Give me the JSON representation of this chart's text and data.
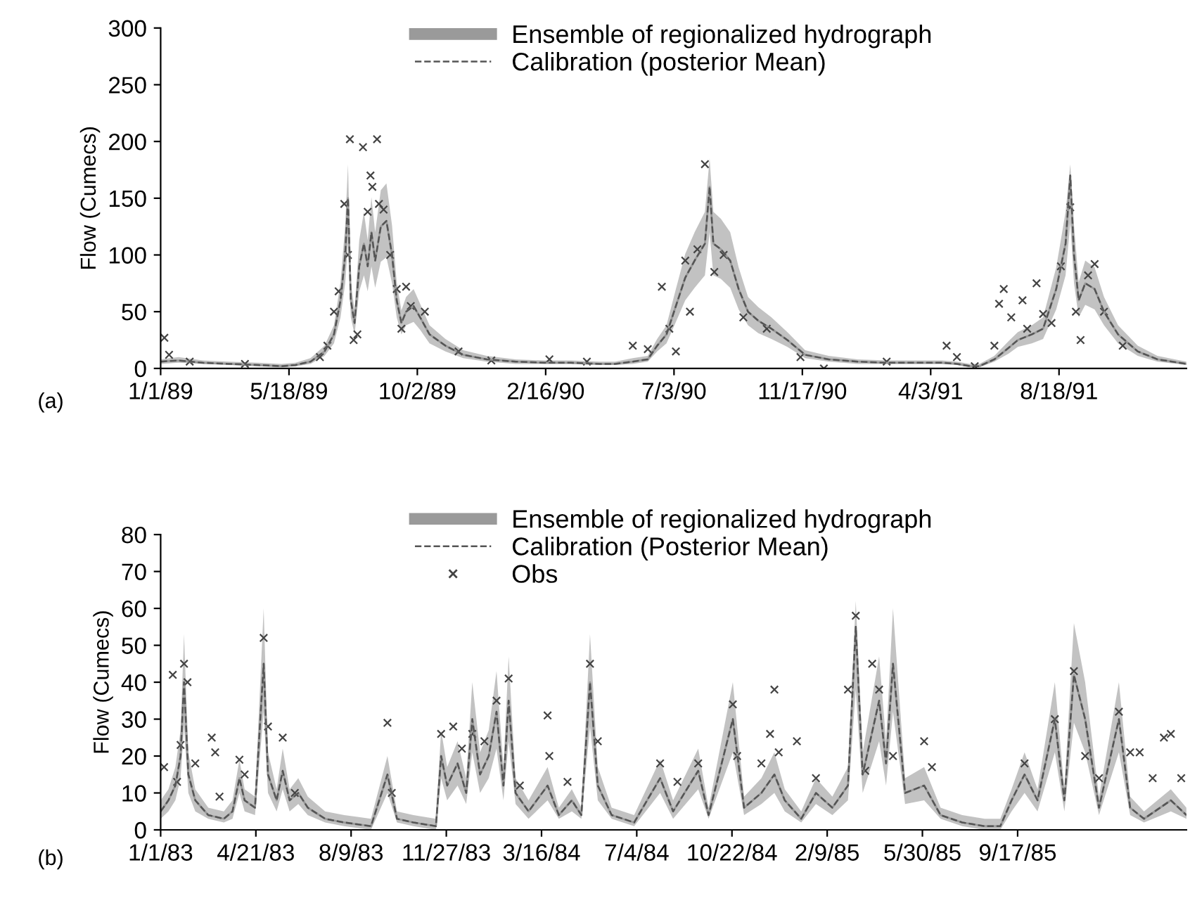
{
  "chart_data": [
    {
      "type": "line",
      "ylabel": "Flow (Cumecs)",
      "annotations": [
        "(a)"
      ],
      "legend": "top",
      "grid": false,
      "xlim": [
        "1989-01-01",
        "1992-01-01"
      ],
      "ylim": [
        0,
        300
      ],
      "yticks": [
        0,
        50,
        100,
        150,
        200,
        250,
        300
      ],
      "xticks": [
        {
          "value": "1989-01-01",
          "label": "1/1/89"
        },
        {
          "value": "1989-05-18",
          "label": "5/18/89"
        },
        {
          "value": "1989-10-02",
          "label": "10/2/89"
        },
        {
          "value": "1990-02-16",
          "label": "2/16/90"
        },
        {
          "value": "1990-07-03",
          "label": "7/3/90"
        },
        {
          "value": "1990-11-17",
          "label": "11/17/90"
        },
        {
          "value": "1991-04-03",
          "label": "4/3/91"
        },
        {
          "value": "1991-08-18",
          "label": "8/18/91"
        }
      ],
      "series": [
        {
          "name": "Ensemble of regionalized hydrograph",
          "type": "line",
          "color": "#9a9a9a",
          "line_style": "solid",
          "x": [
            "1989-01-01",
            "1989-01-20",
            "1989-02-15",
            "1989-03-15",
            "1989-04-15",
            "1989-05-10",
            "1989-05-25",
            "1989-06-10",
            "1989-06-25",
            "1989-07-05",
            "1989-07-12",
            "1989-07-17",
            "1989-07-20",
            "1989-07-23",
            "1989-07-27",
            "1989-08-01",
            "1989-08-06",
            "1989-08-10",
            "1989-08-14",
            "1989-08-18",
            "1989-08-24",
            "1989-08-30",
            "1989-09-05",
            "1989-09-10",
            "1989-09-15",
            "1989-09-20",
            "1989-09-28",
            "1989-10-05",
            "1989-10-15",
            "1989-11-01",
            "1989-11-20",
            "1989-12-15",
            "1990-01-15",
            "1990-02-15",
            "1990-03-15",
            "1990-04-15",
            "1990-05-01",
            "1990-05-20",
            "1990-06-05",
            "1990-06-15",
            "1990-06-25",
            "1990-07-05",
            "1990-07-15",
            "1990-07-25",
            "1990-08-05",
            "1990-08-10",
            "1990-08-14",
            "1990-08-22",
            "1990-09-01",
            "1990-09-10",
            "1990-09-20",
            "1990-10-01",
            "1990-10-15",
            "1990-11-01",
            "1990-11-20",
            "1990-12-15",
            "1991-01-15",
            "1991-02-15",
            "1991-03-15",
            "1991-04-15",
            "1991-05-01",
            "1991-05-15",
            "1991-05-25",
            "1991-06-10",
            "1991-06-25",
            "1991-07-05",
            "1991-07-20",
            "1991-08-01",
            "1991-08-15",
            "1991-08-25",
            "1991-08-30",
            "1991-09-03",
            "1991-09-08",
            "1991-09-15",
            "1991-09-25",
            "1991-10-05",
            "1991-10-20",
            "1991-11-10",
            "1991-12-01",
            "1992-01-01"
          ],
          "values": [
            6,
            7,
            5,
            4,
            3,
            2,
            3,
            6,
            15,
            30,
            60,
            100,
            150,
            60,
            40,
            90,
            110,
            90,
            120,
            95,
            125,
            130,
            100,
            60,
            40,
            50,
            55,
            45,
            30,
            20,
            12,
            8,
            6,
            5,
            5,
            4,
            4,
            6,
            8,
            20,
            30,
            55,
            80,
            95,
            110,
            160,
            110,
            105,
            95,
            70,
            50,
            42,
            35,
            25,
            12,
            8,
            6,
            5,
            5,
            5,
            4,
            2,
            2,
            8,
            18,
            25,
            30,
            35,
            70,
            110,
            170,
            100,
            60,
            75,
            70,
            50,
            30,
            15,
            8,
            4
          ],
          "lower": [
            4,
            5,
            4,
            3,
            2,
            1,
            2,
            4,
            11,
            22,
            45,
            75,
            110,
            45,
            30,
            68,
            82,
            68,
            90,
            71,
            94,
            98,
            75,
            45,
            30,
            38,
            41,
            34,
            22,
            15,
            9,
            6,
            4,
            4,
            4,
            3,
            3,
            4,
            6,
            15,
            22,
            41,
            60,
            71,
            82,
            120,
            82,
            79,
            71,
            52,
            38,
            31,
            26,
            19,
            9,
            6,
            4,
            4,
            4,
            4,
            3,
            1,
            1,
            6,
            13,
            19,
            22,
            26,
            52,
            82,
            128,
            75,
            45,
            56,
            52,
            38,
            22,
            11,
            6,
            3
          ],
          "upper": [
            8,
            10,
            7,
            6,
            5,
            4,
            5,
            9,
            20,
            38,
            76,
            126,
            180,
            76,
            51,
            113,
            138,
            113,
            151,
            120,
            157,
            163,
            126,
            76,
            51,
            63,
            70,
            57,
            38,
            26,
            16,
            11,
            8,
            7,
            7,
            6,
            6,
            9,
            11,
            26,
            38,
            70,
            101,
            120,
            138,
            185,
            138,
            132,
            120,
            89,
            63,
            54,
            45,
            32,
            16,
            11,
            8,
            7,
            7,
            7,
            6,
            4,
            4,
            11,
            24,
            32,
            38,
            45,
            89,
            138,
            180,
            126,
            76,
            95,
            89,
            63,
            38,
            20,
            11,
            6
          ]
        },
        {
          "name": "Calibration (posterior Mean)",
          "type": "line",
          "color": "#555555",
          "line_style": "dashed",
          "x": [
            "1989-01-01",
            "1989-01-20",
            "1989-02-15",
            "1989-03-15",
            "1989-04-15",
            "1989-05-10",
            "1989-05-25",
            "1989-06-10",
            "1989-06-25",
            "1989-07-05",
            "1989-07-12",
            "1989-07-17",
            "1989-07-20",
            "1989-07-23",
            "1989-07-27",
            "1989-08-01",
            "1989-08-06",
            "1989-08-10",
            "1989-08-14",
            "1989-08-18",
            "1989-08-24",
            "1989-08-30",
            "1989-09-05",
            "1989-09-10",
            "1989-09-15",
            "1989-09-20",
            "1989-09-28",
            "1989-10-05",
            "1989-10-15",
            "1989-11-01",
            "1989-11-20",
            "1989-12-15",
            "1990-01-15",
            "1990-02-15",
            "1990-03-15",
            "1990-04-15",
            "1990-05-01",
            "1990-05-20",
            "1990-06-05",
            "1990-06-15",
            "1990-06-25",
            "1990-07-05",
            "1990-07-15",
            "1990-07-25",
            "1990-08-05",
            "1990-08-10",
            "1990-08-14",
            "1990-08-22",
            "1990-09-01",
            "1990-09-10",
            "1990-09-20",
            "1990-10-01",
            "1990-10-15",
            "1990-11-01",
            "1990-11-20",
            "1990-12-15",
            "1991-01-15",
            "1991-02-15",
            "1991-03-15",
            "1991-04-15",
            "1991-05-01",
            "1991-05-15",
            "1991-05-25",
            "1991-06-10",
            "1991-06-25",
            "1991-07-05",
            "1991-07-20",
            "1991-08-01",
            "1991-08-15",
            "1991-08-25",
            "1991-08-30",
            "1991-09-03",
            "1991-09-08",
            "1991-09-15",
            "1991-09-25",
            "1991-10-05",
            "1991-10-20",
            "1991-11-10",
            "1991-12-01",
            "1992-01-01"
          ],
          "values": [
            6,
            7,
            5,
            4,
            3,
            2,
            3,
            6,
            15,
            30,
            60,
            100,
            150,
            60,
            40,
            90,
            110,
            90,
            120,
            95,
            125,
            130,
            100,
            60,
            40,
            50,
            55,
            45,
            30,
            20,
            12,
            8,
            6,
            5,
            5,
            4,
            4,
            6,
            8,
            20,
            30,
            55,
            80,
            95,
            110,
            160,
            110,
            105,
            95,
            70,
            50,
            42,
            35,
            25,
            12,
            8,
            6,
            5,
            5,
            5,
            4,
            2,
            2,
            8,
            18,
            25,
            30,
            35,
            70,
            110,
            170,
            100,
            60,
            75,
            70,
            50,
            30,
            15,
            8,
            4
          ]
        },
        {
          "type": "scatter",
          "color": "#444444",
          "marker": "cross",
          "x": [
            "1989-01-05",
            "1989-01-10",
            "1989-02-01",
            "1989-04-01",
            "1989-06-20",
            "1989-06-28",
            "1989-07-05",
            "1989-07-10",
            "1989-07-16",
            "1989-07-20",
            "1989-07-22",
            "1989-07-26",
            "1989-07-30",
            "1989-08-05",
            "1989-08-10",
            "1989-08-13",
            "1989-08-15",
            "1989-08-20",
            "1989-08-22",
            "1989-08-27",
            "1989-09-03",
            "1989-09-10",
            "1989-09-15",
            "1989-09-20",
            "1989-09-25",
            "1989-10-10",
            "1989-11-15",
            "1989-12-20",
            "1990-02-20",
            "1990-04-01",
            "1990-05-20",
            "1990-06-05",
            "1990-06-20",
            "1990-06-28",
            "1990-07-05",
            "1990-07-15",
            "1990-07-20",
            "1990-07-28",
            "1990-08-05",
            "1990-08-15",
            "1990-08-25",
            "1990-09-15",
            "1990-10-10",
            "1990-11-15",
            "1990-12-10",
            "1991-02-15",
            "1991-04-20",
            "1991-05-01",
            "1991-05-20",
            "1991-06-10",
            "1991-06-15",
            "1991-06-20",
            "1991-06-28",
            "1991-07-10",
            "1991-07-15",
            "1991-07-25",
            "1991-08-01",
            "1991-08-10",
            "1991-08-20",
            "1991-08-30",
            "1991-09-05",
            "1991-09-10",
            "1991-09-18",
            "1991-09-25",
            "1991-10-05",
            "1991-10-25"
          ],
          "values": [
            27,
            12,
            6,
            4,
            10,
            20,
            50,
            68,
            145,
            100,
            202,
            25,
            30,
            195,
            138,
            170,
            160,
            202,
            145,
            140,
            100,
            70,
            35,
            72,
            55,
            50,
            15,
            7,
            8,
            6,
            20,
            17,
            72,
            35,
            15,
            95,
            50,
            105,
            180,
            85,
            100,
            45,
            35,
            10,
            0,
            6,
            20,
            10,
            2,
            20,
            57,
            70,
            45,
            60,
            35,
            75,
            48,
            40,
            90,
            142,
            50,
            25,
            82,
            92,
            50,
            20
          ]
        }
      ]
    },
    {
      "type": "line",
      "ylabel": "Flow (Cumecs)",
      "annotations": [
        "(b)"
      ],
      "legend": "top",
      "grid": false,
      "xlim": [
        "1983-01-01",
        "1986-03-31"
      ],
      "ylim": [
        0,
        80
      ],
      "yticks": [
        0,
        10,
        20,
        30,
        40,
        50,
        60,
        70,
        80
      ],
      "xticks": [
        {
          "value": "1983-01-01",
          "label": "1/1/83"
        },
        {
          "value": "1983-04-21",
          "label": "4/21/83"
        },
        {
          "value": "1983-08-09",
          "label": "8/9/83"
        },
        {
          "value": "1983-11-27",
          "label": "11/27/83"
        },
        {
          "value": "1984-03-16",
          "label": "3/16/84"
        },
        {
          "value": "1984-07-04",
          "label": "7/4/84"
        },
        {
          "value": "1984-10-22",
          "label": "10/22/84"
        },
        {
          "value": "1985-02-09",
          "label": "2/9/85"
        },
        {
          "value": "1985-05-30",
          "label": "5/30/85"
        },
        {
          "value": "1985-09-17",
          "label": "9/17/85"
        }
      ],
      "series": [
        {
          "name": "Ensemble of regionalized hydrograph",
          "type": "line",
          "color": "#9a9a9a",
          "line_style": "solid",
          "x": [
            "1983-01-01",
            "1983-01-10",
            "1983-01-18",
            "1983-01-24",
            "1983-01-28",
            "1983-02-02",
            "1983-02-10",
            "1983-02-25",
            "1983-03-15",
            "1983-03-25",
            "1983-04-02",
            "1983-04-08",
            "1983-04-20",
            "1983-04-30",
            "1983-05-05",
            "1983-05-15",
            "1983-05-22",
            "1983-05-30",
            "1983-06-09",
            "1983-06-20",
            "1983-07-10",
            "1983-08-01",
            "1983-09-01",
            "1983-09-20",
            "1983-10-01",
            "1983-10-20",
            "1983-11-15",
            "1983-11-21",
            "1983-11-28",
            "1983-12-10",
            "1983-12-20",
            "1983-12-27",
            "1984-01-05",
            "1984-01-15",
            "1984-01-24",
            "1984-02-01",
            "1984-02-07",
            "1984-02-15",
            "1984-03-01",
            "1984-03-23",
            "1984-04-05",
            "1984-04-20",
            "1984-05-01",
            "1984-05-11",
            "1984-05-20",
            "1984-06-05",
            "1984-07-01",
            "1984-07-31",
            "1984-08-15",
            "1984-09-13",
            "1984-09-25",
            "1984-10-23",
            "1984-11-05",
            "1984-11-25",
            "1984-12-10",
            "1984-12-22",
            "1985-01-10",
            "1985-01-27",
            "1985-02-15",
            "1985-03-05",
            "1985-03-14",
            "1985-03-22",
            "1985-04-10",
            "1985-04-18",
            "1985-04-26",
            "1985-05-10",
            "1985-06-01",
            "1985-06-20",
            "1985-07-15",
            "1985-08-10",
            "1985-08-28",
            "1985-09-10",
            "1985-09-25",
            "1985-10-10",
            "1985-10-30",
            "1985-11-10",
            "1985-11-21",
            "1985-12-04",
            "1985-12-20",
            "1986-01-12",
            "1986-01-25",
            "1986-02-10",
            "1986-03-13",
            "1986-03-31"
          ],
          "values": [
            5,
            8,
            12,
            20,
            40,
            15,
            8,
            4,
            3,
            5,
            14,
            8,
            6,
            45,
            15,
            8,
            16,
            8,
            10,
            6,
            3,
            2,
            1,
            15,
            3,
            2,
            1,
            20,
            12,
            18,
            10,
            30,
            15,
            20,
            32,
            12,
            35,
            10,
            5,
            12,
            4,
            8,
            4,
            40,
            12,
            4,
            2,
            14,
            5,
            16,
            4,
            30,
            6,
            10,
            15,
            8,
            3,
            10,
            6,
            12,
            55,
            15,
            35,
            18,
            45,
            10,
            12,
            4,
            2,
            1,
            1,
            8,
            15,
            8,
            30,
            8,
            42,
            30,
            6,
            30,
            6,
            3,
            8,
            4
          ],
          "lower": [
            3,
            5,
            8,
            14,
            28,
            10,
            5,
            3,
            2,
            3,
            10,
            5,
            4,
            32,
            10,
            5,
            11,
            5,
            7,
            4,
            2,
            1,
            0,
            10,
            2,
            1,
            0,
            14,
            8,
            12,
            7,
            21,
            10,
            14,
            22,
            8,
            24,
            7,
            3,
            8,
            3,
            5,
            3,
            28,
            8,
            3,
            1,
            10,
            3,
            11,
            3,
            21,
            4,
            7,
            10,
            5,
            2,
            7,
            4,
            8,
            38,
            10,
            24,
            12,
            32,
            7,
            8,
            3,
            1,
            0,
            0,
            5,
            10,
            5,
            21,
            5,
            29,
            21,
            4,
            21,
            4,
            2,
            5,
            3
          ],
          "upper": [
            8,
            11,
            17,
            27,
            53,
            21,
            11,
            6,
            5,
            8,
            19,
            11,
            9,
            60,
            21,
            11,
            22,
            11,
            14,
            9,
            5,
            4,
            3,
            20,
            5,
            4,
            3,
            27,
            17,
            24,
            14,
            40,
            21,
            27,
            43,
            17,
            47,
            14,
            8,
            17,
            6,
            11,
            6,
            53,
            17,
            6,
            4,
            19,
            8,
            22,
            6,
            40,
            9,
            14,
            21,
            11,
            5,
            14,
            9,
            17,
            62,
            21,
            47,
            24,
            60,
            14,
            17,
            6,
            4,
            3,
            3,
            11,
            21,
            11,
            40,
            11,
            56,
            40,
            9,
            40,
            9,
            5,
            11,
            6
          ]
        },
        {
          "name": "Calibration (Posterior Mean)",
          "type": "line",
          "color": "#555555",
          "line_style": "dashed",
          "x": [
            "1983-01-01",
            "1983-01-10",
            "1983-01-18",
            "1983-01-24",
            "1983-01-28",
            "1983-02-02",
            "1983-02-10",
            "1983-02-25",
            "1983-03-15",
            "1983-03-25",
            "1983-04-02",
            "1983-04-08",
            "1983-04-20",
            "1983-04-30",
            "1983-05-05",
            "1983-05-15",
            "1983-05-22",
            "1983-05-30",
            "1983-06-09",
            "1983-06-20",
            "1983-07-10",
            "1983-08-01",
            "1983-09-01",
            "1983-09-20",
            "1983-10-01",
            "1983-10-20",
            "1983-11-15",
            "1983-11-21",
            "1983-11-28",
            "1983-12-10",
            "1983-12-20",
            "1983-12-27",
            "1984-01-05",
            "1984-01-15",
            "1984-01-24",
            "1984-02-01",
            "1984-02-07",
            "1984-02-15",
            "1984-03-01",
            "1984-03-23",
            "1984-04-05",
            "1984-04-20",
            "1984-05-01",
            "1984-05-11",
            "1984-05-20",
            "1984-06-05",
            "1984-07-01",
            "1984-07-31",
            "1984-08-15",
            "1984-09-13",
            "1984-09-25",
            "1984-10-23",
            "1984-11-05",
            "1984-11-25",
            "1984-12-10",
            "1984-12-22",
            "1985-01-10",
            "1985-01-27",
            "1985-02-15",
            "1985-03-05",
            "1985-03-14",
            "1985-03-22",
            "1985-04-10",
            "1985-04-18",
            "1985-04-26",
            "1985-05-10",
            "1985-06-01",
            "1985-06-20",
            "1985-07-15",
            "1985-08-10",
            "1985-08-28",
            "1985-09-10",
            "1985-09-25",
            "1985-10-10",
            "1985-10-30",
            "1985-11-10",
            "1985-11-21",
            "1985-12-04",
            "1985-12-20",
            "1986-01-12",
            "1986-01-25",
            "1986-02-10",
            "1986-03-13",
            "1986-03-31"
          ],
          "values": [
            5,
            8,
            12,
            20,
            40,
            15,
            8,
            4,
            3,
            5,
            14,
            8,
            6,
            45,
            15,
            8,
            16,
            8,
            10,
            6,
            3,
            2,
            1,
            15,
            3,
            2,
            1,
            20,
            12,
            18,
            10,
            30,
            15,
            20,
            32,
            12,
            35,
            10,
            5,
            12,
            4,
            8,
            4,
            40,
            12,
            4,
            2,
            14,
            5,
            16,
            4,
            30,
            6,
            10,
            15,
            8,
            3,
            10,
            6,
            12,
            55,
            15,
            35,
            18,
            45,
            10,
            12,
            4,
            2,
            1,
            1,
            8,
            15,
            8,
            30,
            8,
            42,
            30,
            6,
            30,
            6,
            3,
            8,
            4
          ]
        },
        {
          "name": "Obs",
          "type": "scatter",
          "color": "#444444",
          "marker": "cross",
          "x": [
            "1983-01-05",
            "1983-01-15",
            "1983-01-20",
            "1983-01-24",
            "1983-01-28",
            "1983-02-01",
            "1983-02-10",
            "1983-03-01",
            "1983-03-05",
            "1983-03-10",
            "1983-04-02",
            "1983-04-08",
            "1983-04-30",
            "1983-05-05",
            "1983-05-22",
            "1983-06-05",
            "1983-09-20",
            "1983-09-25",
            "1983-11-21",
            "1983-12-05",
            "1983-12-15",
            "1983-12-27",
            "1984-01-10",
            "1984-01-24",
            "1984-02-07",
            "1984-02-20",
            "1984-03-23",
            "1984-03-25",
            "1984-04-15",
            "1984-05-11",
            "1984-05-20",
            "1984-07-31",
            "1984-08-20",
            "1984-09-13",
            "1984-10-23",
            "1984-10-28",
            "1984-11-25",
            "1984-12-05",
            "1984-12-10",
            "1984-12-15",
            "1985-01-05",
            "1985-01-27",
            "1985-03-05",
            "1985-03-14",
            "1985-03-25",
            "1985-04-02",
            "1985-04-10",
            "1985-04-26",
            "1985-06-01",
            "1985-06-10",
            "1985-09-25",
            "1985-10-30",
            "1985-11-21",
            "1985-12-04",
            "1985-12-20",
            "1986-01-12",
            "1986-01-25",
            "1986-02-05",
            "1986-02-20",
            "1986-03-05",
            "1986-03-13",
            "1986-03-25"
          ],
          "values": [
            17,
            42,
            13,
            23,
            45,
            40,
            18,
            25,
            21,
            9,
            19,
            15,
            52,
            28,
            25,
            10,
            29,
            10,
            26,
            28,
            22,
            26,
            24,
            35,
            41,
            12,
            31,
            20,
            13,
            45,
            24,
            18,
            13,
            18,
            34,
            20,
            18,
            26,
            38,
            21,
            24,
            14,
            38,
            58,
            16,
            45,
            38,
            20,
            24,
            17,
            18,
            30,
            43,
            20,
            14,
            32,
            21,
            21,
            14,
            25,
            26,
            14
          ]
        }
      ]
    }
  ]
}
